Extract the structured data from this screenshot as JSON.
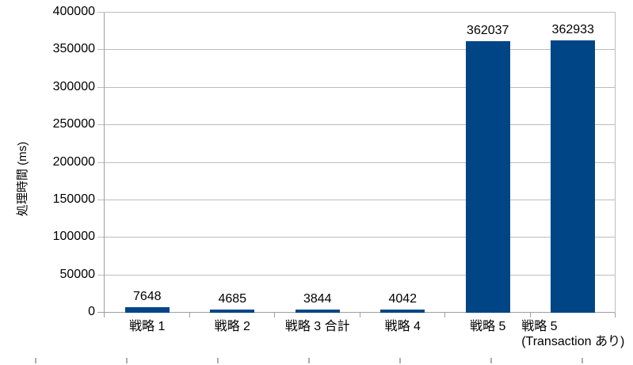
{
  "chart_data": {
    "type": "bar",
    "title": "",
    "categories": [
      "戦略 1",
      "戦略 2",
      "戦略 3 合計",
      "戦略 4",
      "戦略 5",
      "戦略 5\n(Transaction あり)"
    ],
    "values": [
      7648,
      4685,
      3844,
      4042,
      362037,
      362933
    ],
    "data_labels": [
      "7648",
      "4685",
      "3844",
      "4042",
      "362037",
      "362933"
    ],
    "xlabel": "",
    "ylabel": "処理時間 (ms)",
    "ylim": [
      0,
      400000
    ],
    "yticks": [
      0,
      50000,
      100000,
      150000,
      200000,
      250000,
      300000,
      350000,
      400000
    ],
    "grid": true,
    "legend_position": "none",
    "colors": {
      "bar": "#004586",
      "grid": "#bdbdbd",
      "axis": "#9e9e9e",
      "text": "#000000",
      "background": "#ffffff",
      "ruler_tick": "#adadad"
    }
  }
}
